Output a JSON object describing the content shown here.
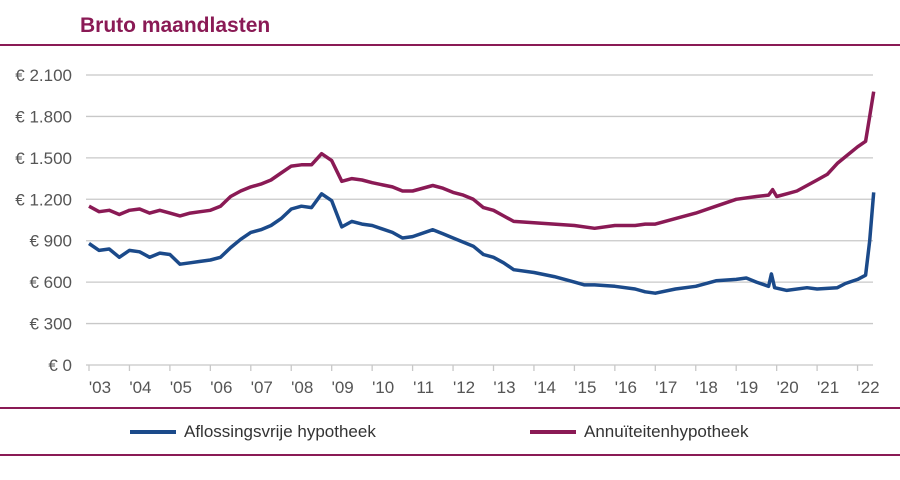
{
  "chart_data": {
    "type": "line",
    "title": "Bruto maandlasten",
    "xlabel": "",
    "ylabel": "",
    "ylim": [
      0,
      2100
    ],
    "yticks": [
      0,
      300,
      600,
      900,
      1200,
      1500,
      1800,
      2100
    ],
    "ytick_labels": [
      "€ 0",
      "€ 300",
      "€ 600",
      "€ 900",
      "€ 1.200",
      "€ 1.500",
      "€ 1.800",
      "€ 2.100"
    ],
    "xlim": [
      2003,
      2022.5
    ],
    "xticks": [
      2003,
      2004,
      2005,
      2006,
      2007,
      2008,
      2009,
      2010,
      2011,
      2012,
      2013,
      2014,
      2015,
      2016,
      2017,
      2018,
      2019,
      2020,
      2021,
      2022
    ],
    "xtick_labels": [
      "'03",
      "'04",
      "'05",
      "'06",
      "'07",
      "'08",
      "'09",
      "'10",
      "'11",
      "'12",
      "'13",
      "'14",
      "'15",
      "'16",
      "'17",
      "'18",
      "'19",
      "'20",
      "'21",
      "'22"
    ],
    "grid": true,
    "legend": "bottom",
    "series": [
      {
        "name": "Aflossingsvrije hypotheek",
        "color": "#1b4a8a",
        "x": [
          2003.0,
          2003.25,
          2003.5,
          2003.75,
          2004.0,
          2004.25,
          2004.5,
          2004.75,
          2005.0,
          2005.25,
          2005.5,
          2005.75,
          2006.0,
          2006.25,
          2006.5,
          2006.75,
          2007.0,
          2007.25,
          2007.5,
          2007.75,
          2008.0,
          2008.25,
          2008.5,
          2008.75,
          2009.0,
          2009.25,
          2009.5,
          2009.75,
          2010.0,
          2010.5,
          2010.75,
          2011.0,
          2011.5,
          2011.75,
          2012.0,
          2012.25,
          2012.5,
          2012.75,
          2013.0,
          2013.25,
          2013.5,
          2014.0,
          2014.5,
          2015.0,
          2015.25,
          2015.5,
          2016.0,
          2016.5,
          2016.75,
          2017.0,
          2017.5,
          2018.0,
          2018.5,
          2019.0,
          2019.25,
          2019.5,
          2019.8,
          2019.87,
          2019.95,
          2020.25,
          2020.75,
          2021.0,
          2021.5,
          2021.7,
          2022.0,
          2022.2,
          2022.3,
          2022.4
        ],
        "y": [
          880,
          830,
          840,
          780,
          830,
          820,
          780,
          810,
          800,
          730,
          740,
          750,
          760,
          780,
          850,
          910,
          960,
          980,
          1010,
          1060,
          1130,
          1150,
          1140,
          1240,
          1190,
          1000,
          1040,
          1020,
          1010,
          960,
          920,
          930,
          980,
          950,
          920,
          890,
          860,
          800,
          780,
          740,
          690,
          670,
          640,
          600,
          580,
          580,
          570,
          550,
          530,
          520,
          550,
          570,
          610,
          620,
          630,
          600,
          570,
          660,
          560,
          540,
          560,
          550,
          560,
          590,
          620,
          650,
          900,
          1250
        ]
      },
      {
        "name": "Annuïteitenhypotheek",
        "color": "#8a1a55",
        "x": [
          2003.0,
          2003.25,
          2003.5,
          2003.75,
          2004.0,
          2004.25,
          2004.5,
          2004.75,
          2005.0,
          2005.25,
          2005.5,
          2005.75,
          2006.0,
          2006.25,
          2006.5,
          2006.75,
          2007.0,
          2007.25,
          2007.5,
          2007.75,
          2008.0,
          2008.25,
          2008.5,
          2008.75,
          2009.0,
          2009.25,
          2009.5,
          2009.75,
          2010.0,
          2010.5,
          2010.75,
          2011.0,
          2011.5,
          2011.75,
          2012.0,
          2012.25,
          2012.5,
          2012.75,
          2013.0,
          2013.25,
          2013.5,
          2014.0,
          2014.5,
          2015.0,
          2015.5,
          2016.0,
          2016.5,
          2016.75,
          2017.0,
          2017.5,
          2018.0,
          2018.5,
          2019.0,
          2019.5,
          2019.8,
          2019.9,
          2020.0,
          2020.25,
          2020.5,
          2020.75,
          2021.0,
          2021.25,
          2021.5,
          2021.75,
          2022.0,
          2022.2,
          2022.3,
          2022.4
        ],
        "y": [
          1150,
          1110,
          1120,
          1090,
          1120,
          1130,
          1100,
          1120,
          1100,
          1080,
          1100,
          1110,
          1120,
          1150,
          1220,
          1260,
          1290,
          1310,
          1340,
          1390,
          1440,
          1450,
          1450,
          1530,
          1480,
          1330,
          1350,
          1340,
          1320,
          1290,
          1260,
          1260,
          1300,
          1280,
          1250,
          1230,
          1200,
          1140,
          1120,
          1080,
          1040,
          1030,
          1020,
          1010,
          990,
          1010,
          1010,
          1020,
          1020,
          1060,
          1100,
          1150,
          1200,
          1220,
          1230,
          1270,
          1220,
          1240,
          1260,
          1300,
          1340,
          1380,
          1460,
          1520,
          1580,
          1620,
          1800,
          1980
        ]
      }
    ]
  }
}
